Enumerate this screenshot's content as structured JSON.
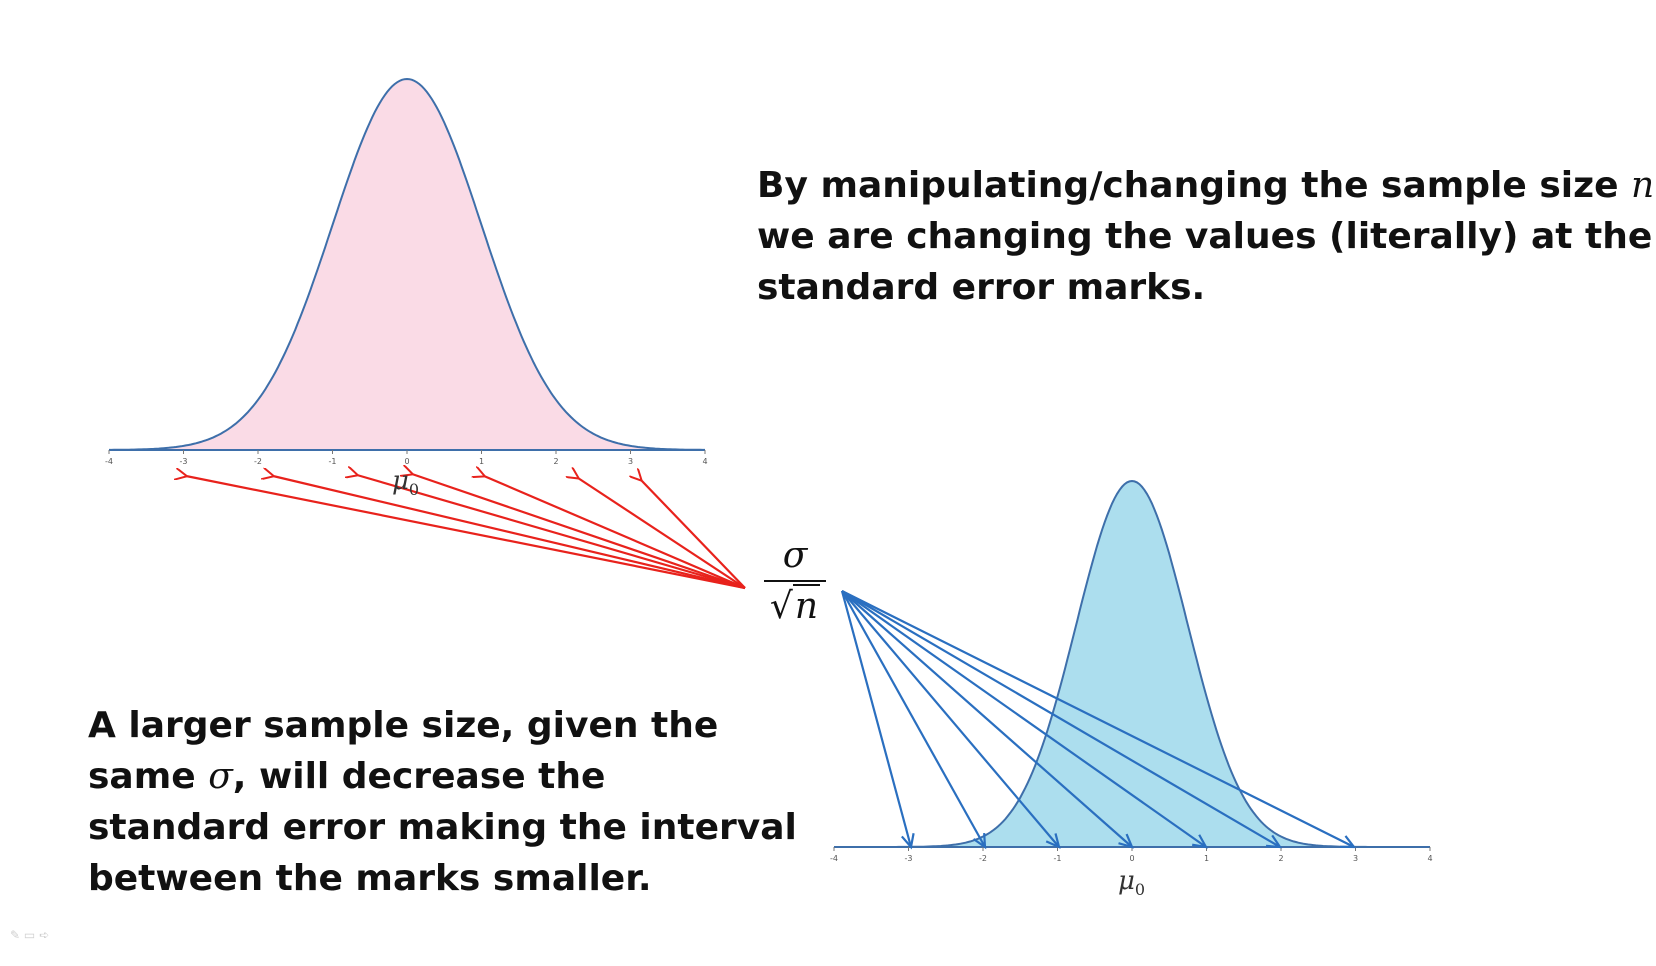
{
  "slide": {
    "text_right": {
      "lines": [
        {
          "before": "By manipulating/changing the sample size ",
          "math": "n",
          "after": ","
        },
        {
          "before": "we are changing the values (literally) at the",
          "math": "",
          "after": ""
        },
        {
          "before": "standard error marks.",
          "math": "",
          "after": ""
        }
      ]
    },
    "text_left": {
      "lines": [
        {
          "before": "A larger sample size, given the",
          "math": "",
          "after": ""
        },
        {
          "before": "same ",
          "math": "σ",
          "after": ", will decrease the"
        },
        {
          "before": "standard error making the interval",
          "math": "",
          "after": ""
        },
        {
          "before": "between the marks smaller.",
          "math": "",
          "after": ""
        }
      ]
    },
    "formula": {
      "numerator": "σ",
      "radical": "√",
      "radicand": "n"
    },
    "top_distribution": {
      "mu_symbol": "μ",
      "mu_subscript": "0",
      "tick_labels": [
        "-4",
        "-3",
        "-2",
        "-1",
        "0",
        "1",
        "2",
        "3",
        "4"
      ],
      "fill_color": "#fadbe6",
      "curve_color": "#3e6faa",
      "arrow_color": "#e8221c",
      "standard_deviation_scale": 1.0
    },
    "bottom_distribution": {
      "mu_symbol": "μ",
      "mu_subscript": "0",
      "tick_labels": [
        "-4",
        "-3",
        "-2",
        "-1",
        "0",
        "1",
        "2",
        "3",
        "4"
      ],
      "fill_color": "#acdeee",
      "curve_color": "#3e6faa",
      "arrow_color": "#2a6fc0",
      "standard_deviation_scale": 0.75
    },
    "corner_icons": [
      "pen-icon",
      "slides-icon",
      "arrow-icon"
    ]
  }
}
